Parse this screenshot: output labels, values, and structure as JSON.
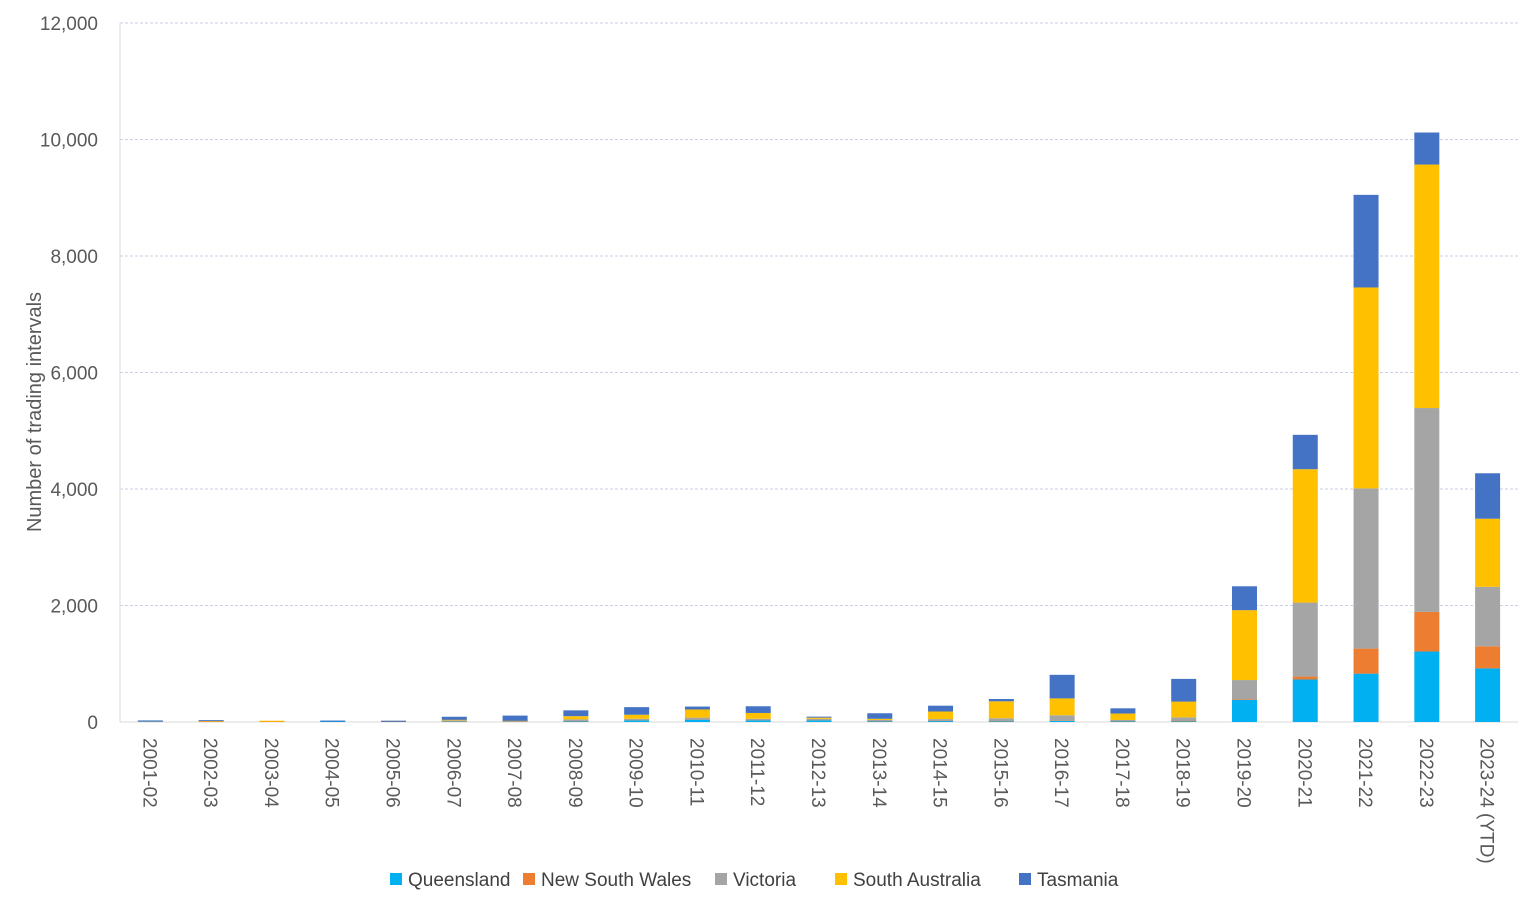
{
  "chart_data": {
    "type": "bar",
    "stacked": true,
    "title": "",
    "xlabel": "",
    "ylabel": "Number of trading intervals",
    "ylim": [
      0,
      12000
    ],
    "yticks": [
      0,
      2000,
      4000,
      6000,
      8000,
      10000,
      12000
    ],
    "ytick_labels": [
      "0",
      "2,000",
      "4,000",
      "6,000",
      "8,000",
      "10,000",
      "12,000"
    ],
    "grid": true,
    "legend_position": "bottom",
    "categories": [
      "2001-02",
      "2002-03",
      "2003-04",
      "2004-05",
      "2005-06",
      "2006-07",
      "2007-08",
      "2008-09",
      "2009-10",
      "2010-11",
      "2011-12",
      "2012-13",
      "2013-14",
      "2014-15",
      "2015-16",
      "2016-17",
      "2017-18",
      "2018-19",
      "2019-20",
      "2020-21",
      "2021-22",
      "2022-23",
      "2023-24 (YTD)"
    ],
    "series": [
      {
        "name": "Queensland",
        "color": "#00B0F0",
        "values": [
          3,
          0,
          0,
          8,
          3,
          5,
          3,
          10,
          30,
          40,
          30,
          30,
          10,
          15,
          10,
          20,
          10,
          10,
          380,
          730,
          830,
          1210,
          920
        ]
      },
      {
        "name": "New South Wales",
        "color": "#ED7D31",
        "values": [
          0,
          5,
          5,
          0,
          2,
          3,
          2,
          5,
          5,
          5,
          5,
          5,
          5,
          5,
          5,
          5,
          5,
          10,
          10,
          50,
          430,
          680,
          380
        ]
      },
      {
        "name": "Victoria",
        "color": "#A5A5A5",
        "values": [
          5,
          0,
          0,
          0,
          0,
          20,
          10,
          30,
          20,
          30,
          20,
          20,
          20,
          30,
          50,
          90,
          20,
          60,
          330,
          1270,
          2750,
          3500,
          1020
        ]
      },
      {
        "name": "South Australia",
        "color": "#FFC000",
        "values": [
          2,
          10,
          10,
          0,
          0,
          10,
          5,
          55,
          70,
          140,
          100,
          20,
          20,
          130,
          290,
          290,
          110,
          270,
          1200,
          2290,
          3450,
          4180,
          1170
        ]
      },
      {
        "name": "Tasmania",
        "color": "#4472C4",
        "values": [
          5,
          5,
          0,
          5,
          5,
          52,
          90,
          100,
          130,
          50,
          115,
          5,
          95,
          100,
          40,
          405,
          90,
          390,
          410,
          590,
          1590,
          550,
          780
        ]
      }
    ]
  }
}
